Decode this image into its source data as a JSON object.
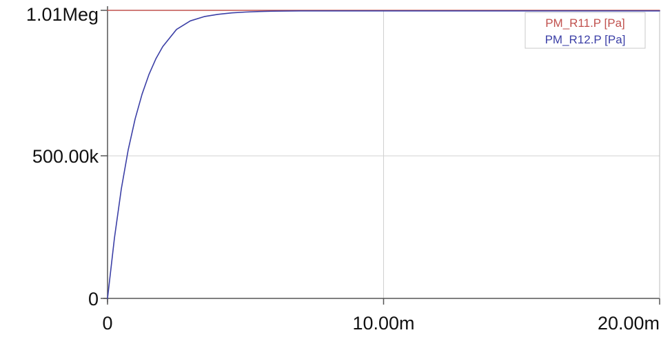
{
  "chart_data": {
    "type": "line",
    "title": "",
    "xlabel": "",
    "ylabel": "",
    "x_unit": "s",
    "xlim": [
      0,
      0.02
    ],
    "ylim": [
      0,
      1010000
    ],
    "x_ticks": [
      {
        "value": 0,
        "label": "0"
      },
      {
        "value": 0.01,
        "label": "10.00m"
      },
      {
        "value": 0.02,
        "label": "20.00m"
      }
    ],
    "y_ticks": [
      {
        "value": 0,
        "label": "0"
      },
      {
        "value": 500000,
        "label": "500.00k"
      },
      {
        "value": 1010000,
        "label": "1.01Meg"
      }
    ],
    "grid": true,
    "legend_position": "top-right",
    "series": [
      {
        "name": "PM_R11.P [Pa]",
        "color": "#c0504d",
        "x": [
          0,
          0.0025,
          0.005,
          0.0075,
          0.01,
          0.0125,
          0.015,
          0.0175,
          0.02
        ],
        "y": [
          1010000,
          1010000,
          1010000,
          1010000,
          1010000,
          1010000,
          1010000,
          1010000,
          1010000
        ]
      },
      {
        "name": "PM_R12.P [Pa]",
        "color": "#3b3fa6",
        "x": [
          0,
          0.00025,
          0.0005,
          0.00075,
          0.001,
          0.00125,
          0.0015,
          0.00175,
          0.002,
          0.0025,
          0.003,
          0.0035,
          0.004,
          0.0045,
          0.005,
          0.0055,
          0.006,
          0.007,
          0.008,
          0.01,
          0.012,
          0.014,
          0.016,
          0.018,
          0.02
        ],
        "y": [
          0,
          211000,
          384000,
          521000,
          630000,
          716000,
          785000,
          840000,
          883000,
          943000,
          973000,
          988000,
          996000,
          1001000,
          1004000,
          1006000,
          1007000,
          1008000,
          1008000,
          1008000,
          1008000,
          1008000,
          1008000,
          1008000,
          1008000
        ]
      }
    ]
  }
}
